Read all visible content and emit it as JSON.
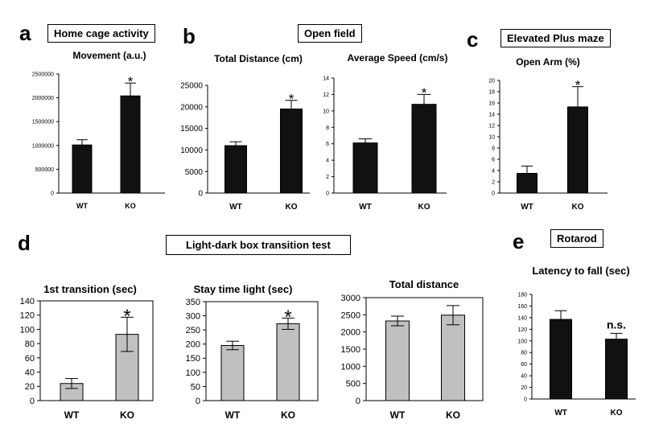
{
  "panels": {
    "a": {
      "letter": "a",
      "box": "Home cage activity"
    },
    "b": {
      "letter": "b",
      "box": "Open field"
    },
    "c": {
      "letter": "c",
      "box": "Elevated Plus maze"
    },
    "d": {
      "letter": "d",
      "box": "Light-dark box transition test"
    },
    "e": {
      "letter": "e",
      "box": "Rotarod"
    }
  },
  "colors": {
    "black_bar": "#111111",
    "grey_bar": "#c0c0c0",
    "axis": "#000000"
  },
  "chart_data": [
    {
      "id": "movement",
      "type": "bar",
      "title": "Movement (a.u.)",
      "categories": [
        "WT",
        "KO"
      ],
      "values": [
        1010000,
        2040000
      ],
      "errors": [
        110000,
        270000
      ],
      "annotations": [
        "",
        "*"
      ],
      "ylim": [
        0,
        2500000
      ],
      "step": 500000,
      "ytick_labels": [
        "0",
        "500000",
        "1000000",
        "1500000",
        "2000000",
        "2500000"
      ],
      "style": "black",
      "frame": false
    },
    {
      "id": "total_distance_of",
      "type": "bar",
      "title": "Total Distance (cm)",
      "categories": [
        "WT",
        "KO"
      ],
      "values": [
        11000,
        19500
      ],
      "errors": [
        900,
        2000
      ],
      "annotations": [
        "",
        "*"
      ],
      "ylim": [
        0,
        25000
      ],
      "step": 5000,
      "ytick_labels": [
        "0",
        "5000",
        "10000",
        "15000",
        "20000",
        "25000"
      ],
      "style": "black",
      "frame": false
    },
    {
      "id": "average_speed",
      "type": "bar",
      "title": "Average Speed (cm/s)",
      "categories": [
        "WT",
        "KO"
      ],
      "values": [
        6.1,
        10.8
      ],
      "errors": [
        0.5,
        1.2
      ],
      "annotations": [
        "",
        "*"
      ],
      "ylim": [
        0,
        14
      ],
      "step": 2,
      "ytick_labels": [
        "0",
        "2",
        "4",
        "6",
        "8",
        "10",
        "12",
        "14"
      ],
      "style": "black",
      "frame": false
    },
    {
      "id": "open_arm",
      "type": "bar",
      "title": "Open Arm (%)",
      "categories": [
        "WT",
        "KO"
      ],
      "values": [
        3.5,
        15.3
      ],
      "errors": [
        1.3,
        3.6
      ],
      "annotations": [
        "",
        "*"
      ],
      "ylim": [
        0,
        20
      ],
      "step": 2,
      "ytick_labels": [
        "0",
        "2",
        "4",
        "6",
        "8",
        "10",
        "12",
        "14",
        "16",
        "18",
        "20"
      ],
      "style": "black",
      "frame": false
    },
    {
      "id": "first_transition",
      "type": "bar",
      "title": "1st transition (sec)",
      "categories": [
        "WT",
        "KO"
      ],
      "values": [
        24,
        93
      ],
      "errors": [
        7,
        24
      ],
      "annotations": [
        "",
        "*"
      ],
      "ylim": [
        0,
        140
      ],
      "step": 20,
      "ytick_labels": [
        "0",
        "20",
        "40",
        "60",
        "80",
        "100",
        "120",
        "140"
      ],
      "style": "grey",
      "frame": true
    },
    {
      "id": "stay_time_light",
      "type": "bar",
      "title": "Stay time light (sec)",
      "categories": [
        "WT",
        "KO"
      ],
      "values": [
        195,
        272
      ],
      "errors": [
        15,
        20
      ],
      "annotations": [
        "",
        "*"
      ],
      "ylim": [
        0,
        350
      ],
      "step": 50,
      "ytick_labels": [
        "0",
        "50",
        "100",
        "150",
        "200",
        "250",
        "300",
        "350"
      ],
      "style": "grey",
      "frame": true
    },
    {
      "id": "total_distance_ld",
      "type": "bar",
      "title": "Total distance",
      "categories": [
        "WT",
        "KO"
      ],
      "values": [
        2320,
        2490
      ],
      "errors": [
        140,
        280
      ],
      "annotations": [
        "",
        ""
      ],
      "ylim": [
        0,
        3000
      ],
      "step": 500,
      "ytick_labels": [
        "0",
        "500",
        "1000",
        "1500",
        "2000",
        "2500",
        "3000"
      ],
      "style": "grey",
      "frame": true
    },
    {
      "id": "latency_to_fall",
      "type": "bar",
      "title": "Latency to fall (sec)",
      "categories": [
        "WT",
        "KO"
      ],
      "values": [
        137,
        103
      ],
      "errors": [
        15,
        10
      ],
      "annotations": [
        "",
        "n.s."
      ],
      "ylim": [
        0,
        180
      ],
      "step": 20,
      "ytick_labels": [
        "0",
        "20",
        "40",
        "60",
        "80",
        "100",
        "120",
        "140",
        "160",
        "180"
      ],
      "style": "black",
      "frame": false
    }
  ]
}
